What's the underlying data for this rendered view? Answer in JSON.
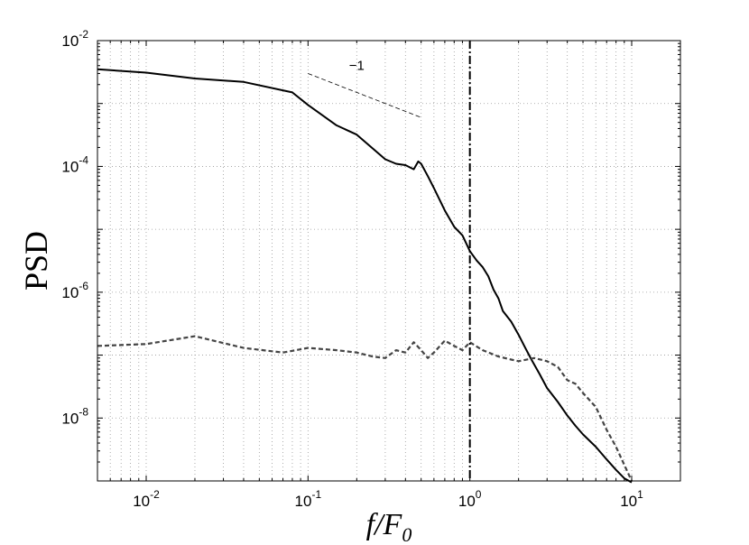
{
  "chart_data": {
    "type": "line",
    "xscale": "log",
    "yscale": "log",
    "xlim": [
      0.005,
      20
    ],
    "ylim": [
      1e-09,
      0.01
    ],
    "grid": true,
    "xlabel": {
      "italic_main": "f/F",
      "subscript": "0"
    },
    "ylabel": "PSD",
    "xticks": [
      {
        "value": 0.01,
        "base": "10",
        "exp": "-2"
      },
      {
        "value": 0.1,
        "base": "10",
        "exp": "-1"
      },
      {
        "value": 1,
        "base": "10",
        "exp": "0"
      },
      {
        "value": 10,
        "base": "10",
        "exp": "1"
      }
    ],
    "yticks": [
      {
        "value": 0.01,
        "base": "10",
        "exp": "-2"
      },
      {
        "value": 0.0001,
        "base": "10",
        "exp": "-4"
      },
      {
        "value": 1e-06,
        "base": "10",
        "exp": "-6"
      },
      {
        "value": 1e-08,
        "base": "10",
        "exp": "-8"
      }
    ],
    "series": [
      {
        "style": "solid",
        "color": "#000000",
        "points": [
          [
            0.005,
            0.0035
          ],
          [
            0.01,
            0.0031
          ],
          [
            0.02,
            0.0025
          ],
          [
            0.04,
            0.0022
          ],
          [
            0.08,
            0.0015
          ],
          [
            0.1,
            0.00095
          ],
          [
            0.15,
            0.00045
          ],
          [
            0.2,
            0.00032
          ],
          [
            0.3,
            0.00013
          ],
          [
            0.35,
            0.00011
          ],
          [
            0.4,
            0.000105
          ],
          [
            0.45,
            9e-05
          ],
          [
            0.48,
            0.00012
          ],
          [
            0.5,
            0.00011
          ],
          [
            0.55,
            7e-05
          ],
          [
            0.6,
            4.5e-05
          ],
          [
            0.7,
            2e-05
          ],
          [
            0.8,
            1.1e-05
          ],
          [
            0.9,
            8e-06
          ],
          [
            1.0,
            4.5e-06
          ],
          [
            1.1,
            3.2e-06
          ],
          [
            1.2,
            2.5e-06
          ],
          [
            1.3,
            1.8e-06
          ],
          [
            1.4,
            1.1e-06
          ],
          [
            1.5,
            8e-07
          ],
          [
            1.6,
            5e-07
          ],
          [
            1.8,
            3.4e-07
          ],
          [
            2.0,
            2.1e-07
          ],
          [
            2.2,
            1.3e-07
          ],
          [
            2.4,
            8.5e-08
          ],
          [
            2.7,
            5e-08
          ],
          [
            3.0,
            3e-08
          ],
          [
            3.5,
            1.8e-08
          ],
          [
            4.0,
            1.1e-08
          ],
          [
            4.5,
            7.5e-09
          ],
          [
            5.0,
            5.5e-09
          ],
          [
            6.0,
            3.5e-09
          ],
          [
            7.0,
            2.2e-09
          ],
          [
            8.0,
            1.5e-09
          ],
          [
            9.0,
            1.1e-09
          ],
          [
            10.0,
            9.5e-10
          ]
        ]
      },
      {
        "style": "dashed",
        "color": "#444444",
        "points": [
          [
            0.005,
            1.4e-07
          ],
          [
            0.01,
            1.5e-07
          ],
          [
            0.02,
            2e-07
          ],
          [
            0.04,
            1.3e-07
          ],
          [
            0.07,
            1.1e-07
          ],
          [
            0.1,
            1.3e-07
          ],
          [
            0.15,
            1.2e-07
          ],
          [
            0.2,
            1.1e-07
          ],
          [
            0.25,
            9.5e-08
          ],
          [
            0.3,
            9e-08
          ],
          [
            0.35,
            1.2e-07
          ],
          [
            0.4,
            1.1e-07
          ],
          [
            0.45,
            1.6e-07
          ],
          [
            0.5,
            1.2e-07
          ],
          [
            0.55,
            9e-08
          ],
          [
            0.6,
            1.1e-07
          ],
          [
            0.7,
            1.7e-07
          ],
          [
            0.8,
            1.4e-07
          ],
          [
            0.9,
            1.2e-07
          ],
          [
            1.0,
            1.6e-07
          ],
          [
            1.2,
            1.2e-07
          ],
          [
            1.5,
            9.5e-08
          ],
          [
            1.8,
            8.5e-08
          ],
          [
            2.0,
            8e-08
          ],
          [
            2.5,
            9e-08
          ],
          [
            3.0,
            8e-08
          ],
          [
            3.5,
            6.5e-08
          ],
          [
            4.0,
            4e-08
          ],
          [
            4.5,
            3.5e-08
          ],
          [
            5.0,
            2.5e-08
          ],
          [
            6.0,
            1.5e-08
          ],
          [
            7.0,
            6.5e-09
          ],
          [
            8.0,
            3.5e-09
          ],
          [
            9.0,
            1.8e-09
          ],
          [
            10.0,
            1e-09
          ]
        ]
      }
    ],
    "annotations": [
      {
        "type": "vertical_line",
        "x": 1,
        "style": "dashdot",
        "color": "#000000"
      },
      {
        "type": "slope_reference",
        "x": [
          0.1,
          0.5
        ],
        "y": [
          0.003,
          0.0006
        ],
        "style": "dashed",
        "label": "−1",
        "label_x": 0.2,
        "label_y": 0.004
      }
    ]
  }
}
